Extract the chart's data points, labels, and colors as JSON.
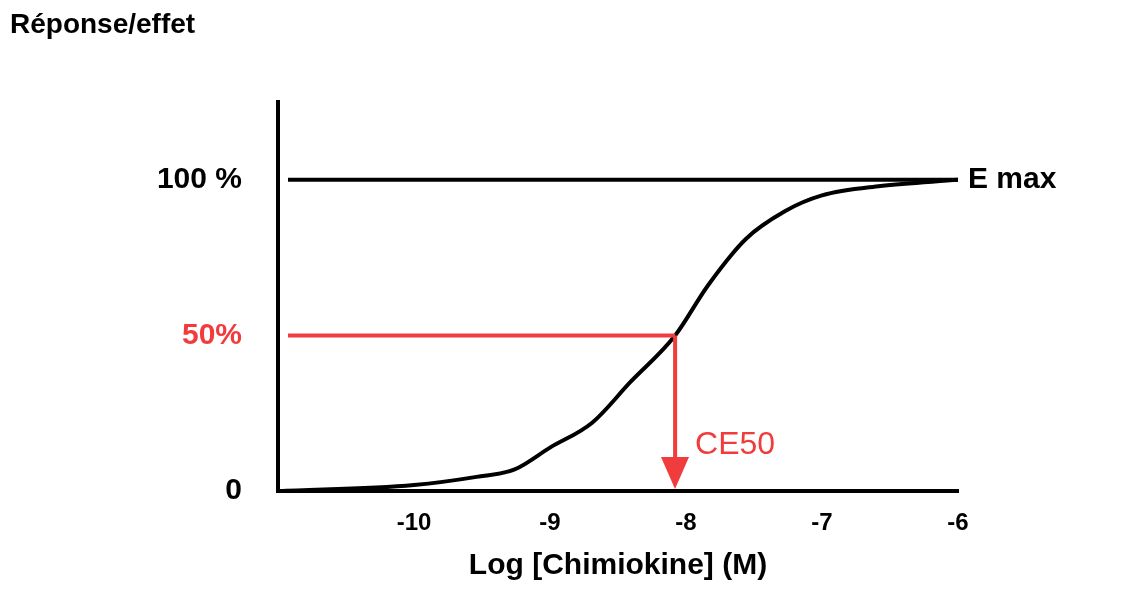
{
  "chart_data": {
    "type": "line",
    "ylabel": "Réponse/effet",
    "xlabel": "Log [Chimiokine] (M)",
    "x": [
      -11,
      -10,
      -9.54,
      -9.26,
      -9,
      -8.69,
      -8.41,
      -8.08,
      -7.84,
      -7.56,
      -7.27,
      -7,
      -6.57,
      -6
    ],
    "series": [
      {
        "color": "#000000",
        "values": [
          0,
          2,
          4.6,
          7,
          14,
          22,
          35,
          50,
          66,
          81,
          90,
          95,
          98,
          100
        ]
      }
    ],
    "xlim": [
      -11,
      -6
    ],
    "xticks": [
      -10,
      -9,
      -8,
      -7,
      -6
    ],
    "ylim": [
      0,
      125
    ],
    "yticks": [
      {
        "value": 0,
        "label": "0"
      },
      {
        "value": 100,
        "label": "100 %"
      }
    ],
    "ref_lines": [
      {
        "axis": "y",
        "value": 100,
        "label": "E max",
        "color": "#000000"
      },
      {
        "axis": "y",
        "value": 50,
        "label": "50%",
        "color": "#f03c3c"
      },
      {
        "axis": "x",
        "value": -8.08,
        "label": "CE50",
        "color": "#f03c3c"
      }
    ],
    "grid": false,
    "legend": false,
    "marker": "none",
    "line_style": "solid"
  }
}
